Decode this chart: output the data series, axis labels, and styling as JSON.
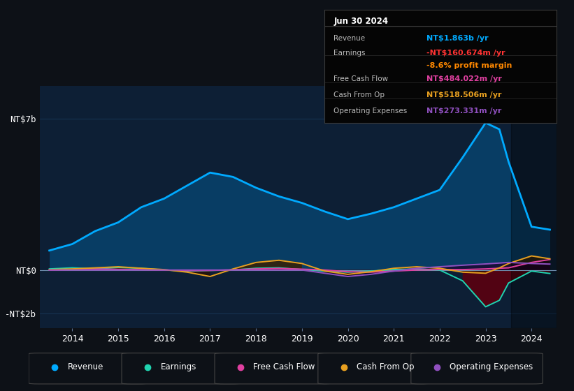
{
  "bg_color": "#0d1117",
  "plot_bg_color": "#0d1f35",
  "grid_color": "#1a3a5c",
  "zero_line_color": "#5a7090",
  "years": [
    2013.5,
    2014.0,
    2014.5,
    2015.0,
    2015.5,
    2016.0,
    2016.5,
    2017.0,
    2017.5,
    2018.0,
    2018.5,
    2019.0,
    2019.5,
    2020.0,
    2020.5,
    2021.0,
    2021.5,
    2022.0,
    2022.5,
    2023.0,
    2023.3,
    2023.5,
    2024.0,
    2024.4
  ],
  "revenue": [
    0.9,
    1.2,
    1.8,
    2.2,
    2.9,
    3.3,
    3.9,
    4.5,
    4.3,
    3.8,
    3.4,
    3.1,
    2.7,
    2.35,
    2.6,
    2.9,
    3.3,
    3.7,
    5.2,
    6.8,
    6.5,
    5.0,
    2.0,
    1.863
  ],
  "earnings": [
    0.05,
    0.1,
    0.05,
    0.12,
    0.08,
    0.0,
    -0.05,
    -0.02,
    0.0,
    0.08,
    0.1,
    0.02,
    -0.05,
    -0.1,
    -0.05,
    0.02,
    0.05,
    0.0,
    -0.5,
    -1.7,
    -1.4,
    -0.6,
    -0.05,
    -0.1607
  ],
  "free_cash_flow": [
    0.0,
    0.02,
    0.05,
    0.03,
    0.02,
    0.0,
    -0.03,
    -0.02,
    0.01,
    0.05,
    0.07,
    0.04,
    0.0,
    -0.08,
    -0.1,
    -0.05,
    0.0,
    0.02,
    0.02,
    0.05,
    0.08,
    0.1,
    0.35,
    0.484
  ],
  "cash_from_op": [
    0.02,
    0.05,
    0.1,
    0.15,
    0.08,
    0.02,
    -0.1,
    -0.3,
    0.05,
    0.35,
    0.45,
    0.3,
    -0.05,
    -0.2,
    -0.08,
    0.08,
    0.15,
    0.08,
    -0.1,
    -0.15,
    0.1,
    0.3,
    0.65,
    0.5185
  ],
  "op_expenses": [
    0.0,
    0.0,
    0.0,
    0.0,
    0.0,
    0.0,
    0.0,
    0.0,
    0.0,
    0.0,
    0.0,
    0.0,
    -0.15,
    -0.3,
    -0.2,
    -0.05,
    0.08,
    0.15,
    0.22,
    0.28,
    0.32,
    0.35,
    0.3,
    0.2733
  ],
  "revenue_color": "#00aaff",
  "earnings_color": "#20d4b0",
  "fcf_color": "#e040a0",
  "cashop_color": "#e8a020",
  "opexp_color": "#9050c0",
  "revenue_fill": "#0a2a4a",
  "earnings_fill_neg": "#3a0a10",
  "cashop_fill_pos": "#2a1a00",
  "cashop_fill_neg": "#2a1000",
  "x_ticks": [
    2014,
    2015,
    2016,
    2017,
    2018,
    2019,
    2020,
    2021,
    2022,
    2023,
    2024
  ],
  "y_ticks_labels": [
    "NT$7b",
    "NT$0",
    "-NT$2b"
  ],
  "y_ticks_values": [
    7,
    0,
    -2
  ],
  "ylim_min": -2.7,
  "ylim_max": 8.5,
  "xlim_min": 2013.3,
  "xlim_max": 2024.55,
  "legend_items": [
    {
      "label": "Revenue",
      "color": "#00aaff"
    },
    {
      "label": "Earnings",
      "color": "#20d4b0"
    },
    {
      "label": "Free Cash Flow",
      "color": "#e040a0"
    },
    {
      "label": "Cash From Op",
      "color": "#e8a020"
    },
    {
      "label": "Operating Expenses",
      "color": "#9050c0"
    }
  ],
  "info_box": {
    "date": "Jun 30 2024",
    "rows": [
      {
        "label": "Revenue",
        "value": "NT$1.863b /yr",
        "value_color": "#00aaff"
      },
      {
        "label": "Earnings",
        "value": "-NT$160.674m /yr",
        "value_color": "#ff3333"
      },
      {
        "label": "",
        "value": "-8.6% profit margin",
        "value_color": "#ff8800"
      },
      {
        "label": "Free Cash Flow",
        "value": "NT$484.022m /yr",
        "value_color": "#e040a0"
      },
      {
        "label": "Cash From Op",
        "value": "NT$518.506m /yr",
        "value_color": "#e8a020"
      },
      {
        "label": "Operating Expenses",
        "value": "NT$273.331m /yr",
        "value_color": "#9050c0"
      }
    ]
  }
}
